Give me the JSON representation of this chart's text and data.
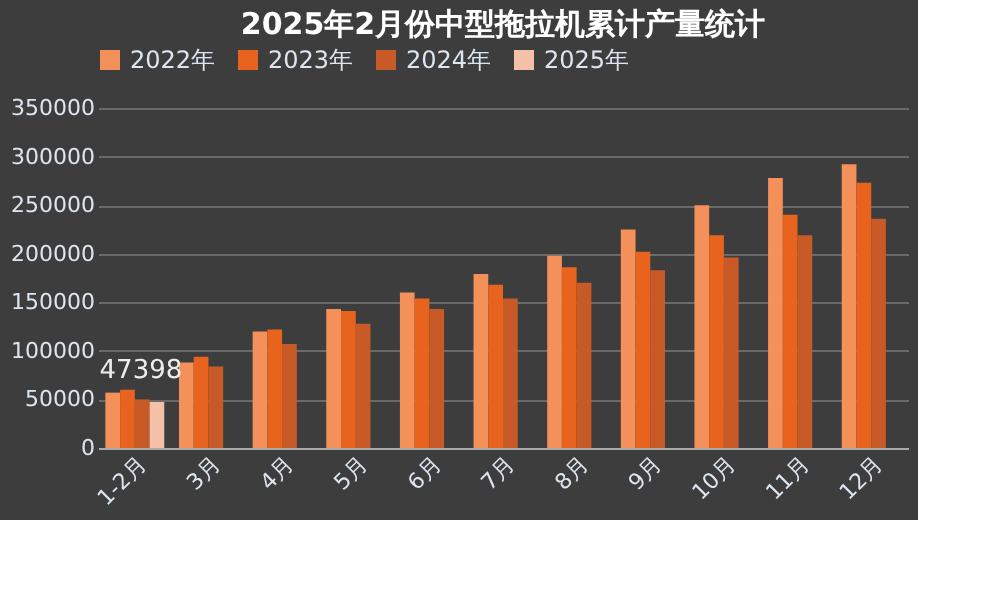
{
  "chart_data": {
    "type": "bar",
    "title": "2025年2月份中型拖拉机累计产量统计",
    "categories": [
      "1-2月",
      "3月",
      "4月",
      "5月",
      "6月",
      "7月",
      "8月",
      "9月",
      "10月",
      "11月",
      "12月"
    ],
    "series": [
      {
        "name": "2022年",
        "color": "#f4905a",
        "values": [
          57000,
          88000,
          120000,
          143000,
          160000,
          179000,
          198000,
          225000,
          250000,
          278000,
          292000
        ]
      },
      {
        "name": "2023年",
        "color": "#e8641e",
        "values": [
          60000,
          94000,
          122000,
          141000,
          154000,
          168000,
          186000,
          202000,
          219000,
          240000,
          273000
        ]
      },
      {
        "name": "2024年",
        "color": "#c85a28",
        "values": [
          50000,
          84000,
          107000,
          128000,
          143000,
          154000,
          170000,
          183000,
          196000,
          219000,
          236000
        ]
      },
      {
        "name": "2025年",
        "color": "#f5c0a8",
        "values": [
          47398,
          null,
          null,
          null,
          null,
          null,
          null,
          null,
          null,
          null,
          null
        ],
        "value_labels": [
          "47398",
          null,
          null,
          null,
          null,
          null,
          null,
          null,
          null,
          null,
          null
        ]
      }
    ],
    "ylim": [
      0,
      350000
    ],
    "yticks": [
      0,
      50000,
      100000,
      150000,
      200000,
      250000,
      300000,
      350000
    ],
    "grid": "y",
    "legend": "top"
  }
}
